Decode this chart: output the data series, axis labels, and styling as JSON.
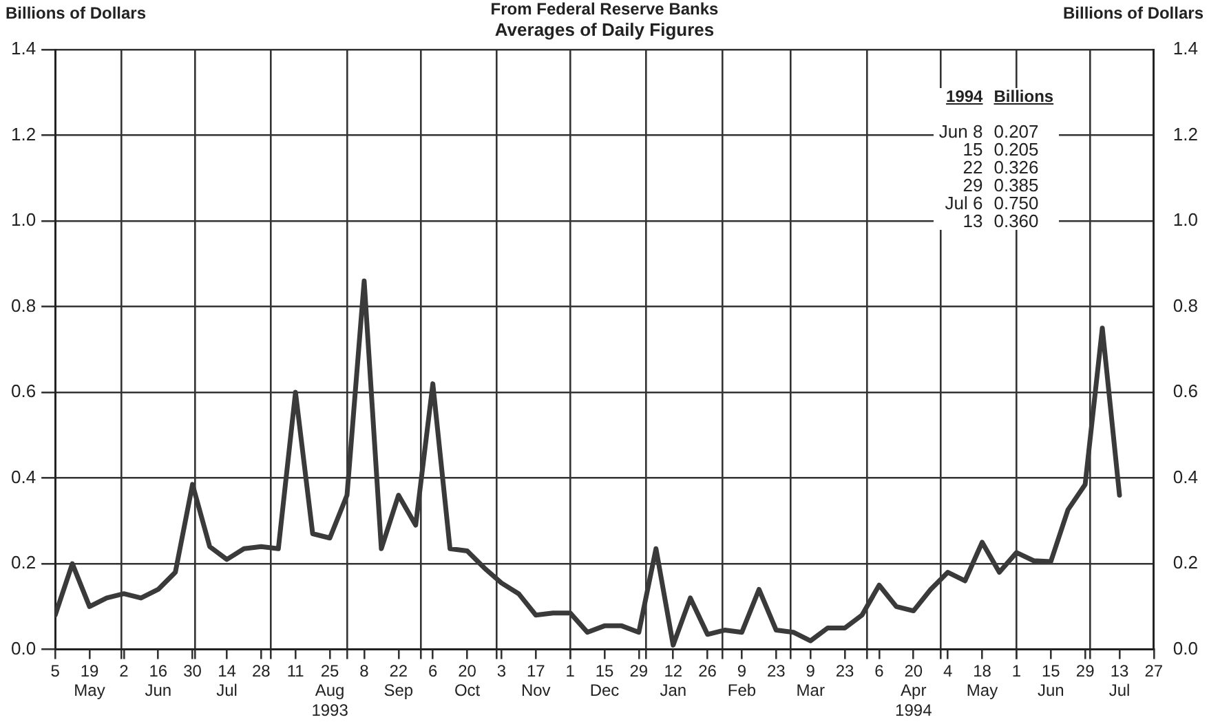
{
  "chart_data": {
    "type": "line",
    "title": "From Federal Reserve Banks",
    "subtitle": "Averages of Daily Figures",
    "ylabel": "Billions of Dollars",
    "y2label": "Billions of Dollars",
    "x": [
      "1993-05-05",
      "1993-05-12",
      "1993-05-19",
      "1993-05-26",
      "1993-06-02",
      "1993-06-09",
      "1993-06-16",
      "1993-06-23",
      "1993-06-30",
      "1993-07-07",
      "1993-07-14",
      "1993-07-21",
      "1993-07-28",
      "1993-08-04",
      "1993-08-11",
      "1993-08-18",
      "1993-08-25",
      "1993-09-01",
      "1993-09-08",
      "1993-09-15",
      "1993-09-22",
      "1993-09-29",
      "1993-10-06",
      "1993-10-13",
      "1993-10-20",
      "1993-10-27",
      "1993-11-03",
      "1993-11-10",
      "1993-11-17",
      "1993-11-24",
      "1993-12-01",
      "1993-12-08",
      "1993-12-15",
      "1993-12-22",
      "1993-12-29",
      "1994-01-05",
      "1994-01-12",
      "1994-01-19",
      "1994-01-26",
      "1994-02-02",
      "1994-02-09",
      "1994-02-16",
      "1994-02-23",
      "1994-03-02",
      "1994-03-09",
      "1994-03-16",
      "1994-03-23",
      "1994-03-30",
      "1994-04-06",
      "1994-04-13",
      "1994-04-20",
      "1994-04-27",
      "1994-05-04",
      "1994-05-11",
      "1994-05-18",
      "1994-05-25",
      "1994-06-01",
      "1994-06-08",
      "1994-06-15",
      "1994-06-22",
      "1994-06-29",
      "1994-07-06",
      "1994-07-13"
    ],
    "series": [
      {
        "color": "#3a3a3a",
        "values": [
          0.08,
          0.2,
          0.1,
          0.12,
          0.13,
          0.12,
          0.14,
          0.18,
          0.385,
          0.24,
          0.21,
          0.235,
          0.24,
          0.235,
          0.6,
          0.27,
          0.26,
          0.36,
          0.86,
          0.235,
          0.36,
          0.29,
          0.62,
          0.235,
          0.23,
          0.19,
          0.155,
          0.13,
          0.08,
          0.085,
          0.085,
          0.04,
          0.055,
          0.055,
          0.04,
          0.235,
          0.01,
          0.12,
          0.035,
          0.045,
          0.04,
          0.14,
          0.045,
          0.04,
          0.02,
          0.05,
          0.05,
          0.08,
          0.15,
          0.1,
          0.09,
          0.14,
          0.18,
          0.16,
          0.25,
          0.18,
          0.226,
          0.207,
          0.205,
          0.326,
          0.385,
          0.75,
          0.36
        ]
      }
    ],
    "xlim": [
      "1993-05-05",
      "1994-07-27"
    ],
    "xticks": [
      {
        "value": "1993-05-05",
        "label": "5"
      },
      {
        "value": "1993-05-19",
        "label": "19\nMay"
      },
      {
        "value": "1993-06-01",
        "label": null
      },
      {
        "value": "1993-06-02",
        "label": "2"
      },
      {
        "value": "1993-06-16",
        "label": "16\nJun"
      },
      {
        "value": "1993-06-30",
        "label": "30"
      },
      {
        "value": "1993-07-01",
        "label": null
      },
      {
        "value": "1993-07-14",
        "label": "14\nJul"
      },
      {
        "value": "1993-07-28",
        "label": "28"
      },
      {
        "value": "1993-08-01",
        "label": null
      },
      {
        "value": "1993-08-11",
        "label": "11"
      },
      {
        "value": "1993-08-25",
        "label": "25\nAug\n1993"
      },
      {
        "value": "1993-09-01",
        "label": null
      },
      {
        "value": "1993-09-08",
        "label": "8"
      },
      {
        "value": "1993-09-22",
        "label": "22\nSep"
      },
      {
        "value": "1993-10-01",
        "label": null
      },
      {
        "value": "1993-10-06",
        "label": "6"
      },
      {
        "value": "1993-10-20",
        "label": "20\nOct"
      },
      {
        "value": "1993-11-01",
        "label": null
      },
      {
        "value": "1993-11-03",
        "label": "3"
      },
      {
        "value": "1993-11-17",
        "label": "17\nNov"
      },
      {
        "value": "1993-12-01",
        "label": null
      },
      {
        "value": "1993-12-01",
        "label": "1"
      },
      {
        "value": "1993-12-15",
        "label": "15\nDec"
      },
      {
        "value": "1993-12-29",
        "label": "29"
      },
      {
        "value": "1994-01-01",
        "label": null
      },
      {
        "value": "1994-01-12",
        "label": "12\nJan"
      },
      {
        "value": "1994-01-26",
        "label": "26"
      },
      {
        "value": "1994-02-01",
        "label": null
      },
      {
        "value": "1994-02-09",
        "label": "9\nFeb"
      },
      {
        "value": "1994-02-23",
        "label": "23"
      },
      {
        "value": "1994-03-01",
        "label": null
      },
      {
        "value": "1994-03-09",
        "label": "9\nMar"
      },
      {
        "value": "1994-03-23",
        "label": "23"
      },
      {
        "value": "1994-04-01",
        "label": null
      },
      {
        "value": "1994-04-06",
        "label": "6"
      },
      {
        "value": "1994-04-20",
        "label": "20\nApr\n1994"
      },
      {
        "value": "1994-05-01",
        "label": null
      },
      {
        "value": "1994-05-04",
        "label": "4"
      },
      {
        "value": "1994-05-18",
        "label": "18\nMay"
      },
      {
        "value": "1994-06-01",
        "label": null
      },
      {
        "value": "1994-06-01",
        "label": "1"
      },
      {
        "value": "1994-06-15",
        "label": "15\nJun"
      },
      {
        "value": "1994-06-29",
        "label": "29"
      },
      {
        "value": "1994-07-01",
        "label": null
      },
      {
        "value": "1994-07-13",
        "label": "13\nJul"
      },
      {
        "value": "1994-07-27",
        "label": "27"
      }
    ],
    "ylim": [
      0,
      1.4
    ],
    "yticks": [
      {
        "value": 0,
        "label": "0.0"
      },
      0.2,
      0.4,
      0.6,
      0.8,
      {
        "value": 1,
        "label": "1.0"
      },
      1.2,
      1.4
    ],
    "y2lim": [
      0,
      1.4
    ],
    "y2ticks": [
      {
        "value": 0,
        "label": "0.0"
      },
      0.2,
      0.4,
      0.6,
      0.8,
      {
        "value": 1,
        "label": "1.0"
      },
      1.2,
      1.4
    ],
    "annotations": [
      "1994",
      "Billions",
      "Jun  8",
      "0.207",
      "15",
      "0.205",
      "22",
      "0.326",
      "29",
      "0.385",
      "Jul  6",
      "0.750",
      "13",
      "0.360"
    ],
    "grid": true,
    "legend": false,
    "marker": "none",
    "line_style": "solid"
  }
}
